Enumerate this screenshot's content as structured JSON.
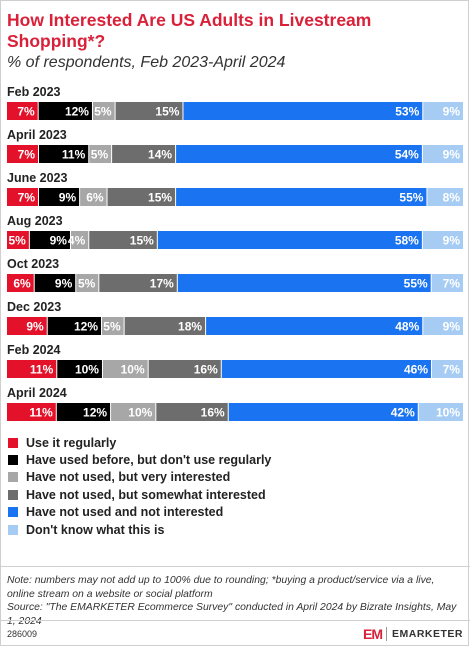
{
  "header": {
    "title": "How Interested Are US Adults in Livestream Shopping*?",
    "subtitle": "% of respondents, Feb 2023-April 2024"
  },
  "chart_data": {
    "type": "bar",
    "stacked": true,
    "orientation": "horizontal",
    "categories": [
      "Feb 2023",
      "April 2023",
      "June 2023",
      "Aug 2023",
      "Oct 2023",
      "Dec 2023",
      "Feb 2024",
      "April 2024"
    ],
    "series": [
      {
        "name": "Use it regularly",
        "color": "#e3122a",
        "values": [
          7,
          7,
          7,
          5,
          6,
          9,
          11,
          11
        ]
      },
      {
        "name": "Have used before, but don't use regularly",
        "color": "#000000",
        "values": [
          12,
          11,
          9,
          9,
          9,
          12,
          10,
          12
        ]
      },
      {
        "name": "Have not used, but very interested",
        "color": "#a7a7a7",
        "values": [
          5,
          5,
          6,
          4,
          5,
          5,
          10,
          10
        ]
      },
      {
        "name": "Have not used, but somewhat interested",
        "color": "#6d6d6d",
        "values": [
          15,
          14,
          15,
          15,
          17,
          18,
          16,
          16
        ]
      },
      {
        "name": "Have not used and not interested",
        "color": "#1a73f0",
        "values": [
          53,
          54,
          55,
          58,
          55,
          48,
          46,
          42
        ]
      },
      {
        "name": "Don't know what this is",
        "color": "#a6ccf3",
        "values": [
          9,
          9,
          8,
          9,
          7,
          9,
          7,
          10
        ]
      }
    ],
    "value_suffix": "%",
    "legend_position": "bottom",
    "grid": false
  },
  "footer": {
    "note": "Note: numbers may not add up to 100% due to rounding; *buying a product/service via a live, online stream on a website or social platform",
    "source": "Source: \"The EMARKETER Ecommerce Survey\" conducted in April 2024 by Bizrate Insights, May 1, 2024",
    "chart_id": "286009",
    "brand_mark": "EM",
    "brand_name": "EMARKETER"
  }
}
